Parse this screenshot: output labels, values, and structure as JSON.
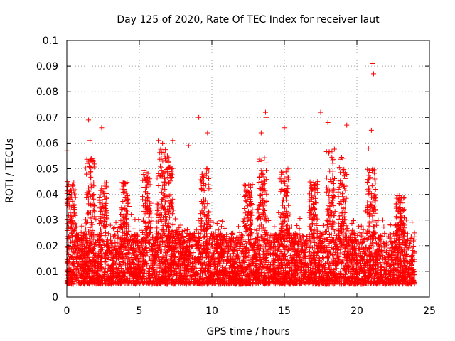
{
  "chart_data": {
    "type": "scatter",
    "title": "Day 125 of 2020, Rate Of TEC Index for receiver laut",
    "xlabel": "GPS time / hours",
    "ylabel": "ROTI / TECUs",
    "xlim": [
      0,
      25
    ],
    "ylim": [
      0,
      0.1
    ],
    "xticks": [
      0,
      5,
      10,
      15,
      20,
      25
    ],
    "yticks": [
      0,
      0.01,
      0.02,
      0.03,
      0.04,
      0.05,
      0.06,
      0.07,
      0.08,
      0.09,
      0.1
    ],
    "xtick_labels": [
      "0",
      "5",
      "10",
      "15",
      "20",
      "25"
    ],
    "ytick_labels": [
      "0",
      "0.01",
      "0.02",
      "0.03",
      "0.04",
      "0.05",
      "0.06",
      "0.07",
      "0.08",
      "0.09",
      "0.1"
    ],
    "grid": true,
    "marker": "+",
    "color": "#ff0000",
    "x_range_covered": [
      0,
      24
    ],
    "typical_band": [
      0.005,
      0.025
    ],
    "outliers": [
      {
        "x": 0.0,
        "y": 0.057
      },
      {
        "x": 1.5,
        "y": 0.069
      },
      {
        "x": 1.6,
        "y": 0.061
      },
      {
        "x": 2.4,
        "y": 0.066
      },
      {
        "x": 6.3,
        "y": 0.061
      },
      {
        "x": 6.6,
        "y": 0.06
      },
      {
        "x": 7.3,
        "y": 0.061
      },
      {
        "x": 8.4,
        "y": 0.059
      },
      {
        "x": 9.1,
        "y": 0.07
      },
      {
        "x": 9.7,
        "y": 0.064
      },
      {
        "x": 13.4,
        "y": 0.064
      },
      {
        "x": 13.7,
        "y": 0.072
      },
      {
        "x": 13.8,
        "y": 0.07
      },
      {
        "x": 15.0,
        "y": 0.066
      },
      {
        "x": 17.5,
        "y": 0.072
      },
      {
        "x": 18.0,
        "y": 0.068
      },
      {
        "x": 19.3,
        "y": 0.067
      },
      {
        "x": 20.8,
        "y": 0.058
      },
      {
        "x": 21.1,
        "y": 0.091
      },
      {
        "x": 21.15,
        "y": 0.087
      },
      {
        "x": 21.0,
        "y": 0.065
      }
    ],
    "peaks": [
      {
        "x": 0.3,
        "y": 0.045
      },
      {
        "x": 1.6,
        "y": 0.055
      },
      {
        "x": 2.5,
        "y": 0.045
      },
      {
        "x": 4.0,
        "y": 0.045
      },
      {
        "x": 5.5,
        "y": 0.05
      },
      {
        "x": 6.5,
        "y": 0.058
      },
      {
        "x": 7.0,
        "y": 0.055
      },
      {
        "x": 9.5,
        "y": 0.05
      },
      {
        "x": 12.5,
        "y": 0.045
      },
      {
        "x": 13.5,
        "y": 0.055
      },
      {
        "x": 15.0,
        "y": 0.05
      },
      {
        "x": 17.0,
        "y": 0.045
      },
      {
        "x": 18.2,
        "y": 0.058
      },
      {
        "x": 19.0,
        "y": 0.055
      },
      {
        "x": 21.0,
        "y": 0.05
      },
      {
        "x": 23.0,
        "y": 0.04
      }
    ]
  }
}
